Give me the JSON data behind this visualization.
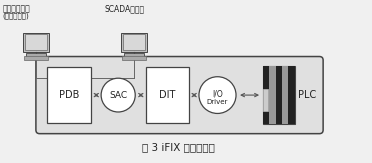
{
  "title": "图 3 iFIX 数据流结构",
  "label_client": "客户浏览节点",
  "label_client2": "(客户监控站)",
  "label_scada": "SCADA服务器",
  "label_plc": "PLC",
  "fig_bg": "#f0f0f0",
  "box_bg": "#e0e0e0",
  "inner_bg": "#ffffff",
  "edge_color": "#666666",
  "dark_edge": "#444444",
  "arrow_color": "#555555",
  "text_color": "#222222",
  "plc_dark": "#333333",
  "plc_mid": "#777777",
  "plc_bg": "#555555",
  "monitor_body": "#c0c0c0",
  "monitor_screen": "#d8d8d8",
  "monitor_base": "#aaaaaa"
}
